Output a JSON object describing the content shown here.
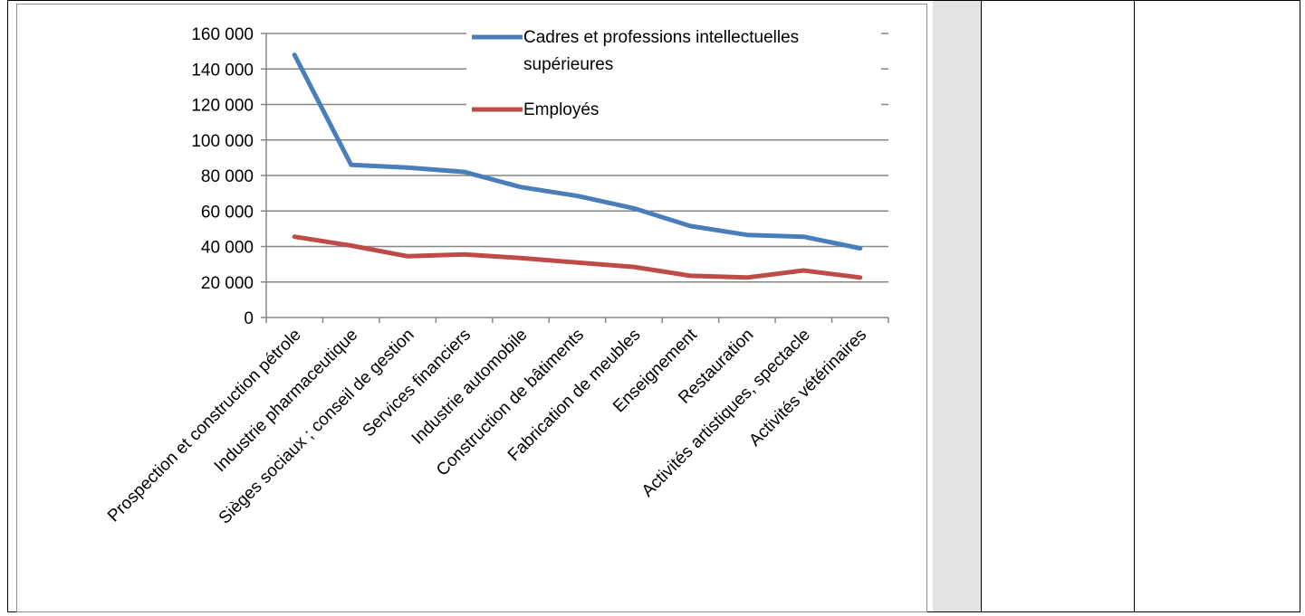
{
  "chart_data": {
    "type": "line",
    "title": "",
    "xlabel": "",
    "ylabel": "",
    "ylim": [
      0,
      160000
    ],
    "yticks": [
      0,
      20000,
      40000,
      60000,
      80000,
      100000,
      120000,
      140000,
      160000
    ],
    "ytick_labels": [
      "0",
      "20 000",
      "40 000",
      "60 000",
      "80 000",
      "100 000",
      "120 000",
      "140 000",
      "160 000"
    ],
    "grid": true,
    "legend_position": "top-right",
    "categories": [
      "Prospection et construction pétrole",
      "Industrie pharmaceutique",
      "Sièges sociaux ; conseil de gestion",
      "Services financiers",
      "Industrie automobile",
      "Construction de bâtiments",
      "Fabrication de meubles",
      "Enseignement",
      "Restauration",
      "Activités artistiques, spectacle",
      "Activités vétérinaires"
    ],
    "series": [
      {
        "name": "Cadres et professions intellectuelles supérieures",
        "name_lines": [
          "Cadres et professions intellectuelles",
          "supérieures"
        ],
        "color": "#4a7ebb",
        "values": [
          148000,
          86000,
          84500,
          82000,
          73500,
          68500,
          61500,
          51500,
          46500,
          45500,
          39000
        ]
      },
      {
        "name": "Employés",
        "name_lines": [
          "Employés"
        ],
        "color": "#be4b48",
        "values": [
          45500,
          40500,
          34500,
          35500,
          33500,
          31000,
          28500,
          23500,
          22500,
          26500,
          22500
        ]
      }
    ]
  }
}
